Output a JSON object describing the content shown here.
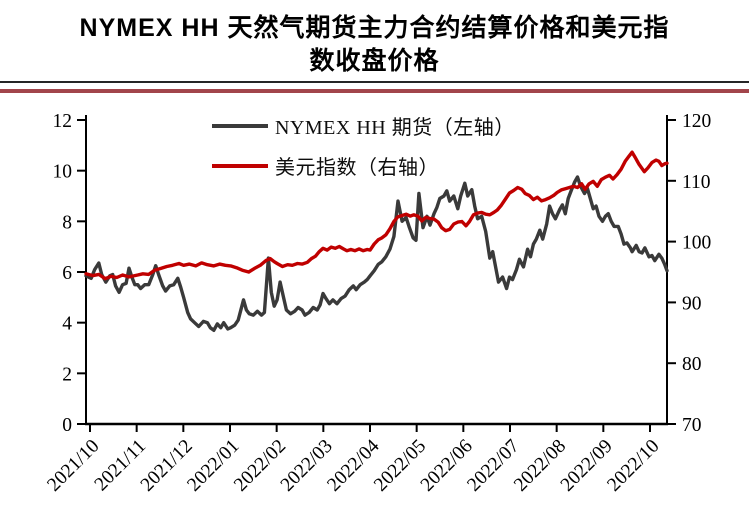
{
  "header": {
    "title": "NYMEX HH 天然气期货主力合约结算价格和美元指数收盘价格",
    "title_lines": [
      "NYMEX HH 天然气期货主力合约结算价格和美元指",
      "数收盘价格"
    ]
  },
  "colors": {
    "nymex_line": "#3a3a3a",
    "dxy_line": "#c00000",
    "title_rule_red": "#a2454b",
    "title_rule_thin": "#262626",
    "axis": "#000000"
  },
  "chart_data": {
    "type": "line",
    "title": "NYMEX HH 天然气期货主力合约结算价格和美元指数收盘价格",
    "grid": false,
    "legend_position": "top-center",
    "x_tick_labels": [
      "2021/10",
      "2021/11",
      "2021/12",
      "2022/01",
      "2022/02",
      "2022/03",
      "2022/04",
      "2022/05",
      "2022/06",
      "2022/07",
      "2022/08",
      "2022/09",
      "2022/10"
    ],
    "left_axis": {
      "min": 0,
      "max": 12,
      "ticks": [
        0,
        2,
        4,
        6,
        8,
        10,
        12
      ]
    },
    "right_axis": {
      "min": 70,
      "max": 120,
      "ticks": [
        70,
        80,
        90,
        100,
        110,
        120
      ]
    },
    "series": [
      {
        "name": "NYMEX HH 期货（左轴）",
        "axis": "left",
        "color": "#3a3a3a",
        "points": [
          [
            0.0,
            5.85
          ],
          [
            0.009,
            5.75
          ],
          [
            0.015,
            6.1
          ],
          [
            0.022,
            6.35
          ],
          [
            0.027,
            5.9
          ],
          [
            0.034,
            5.6
          ],
          [
            0.041,
            5.85
          ],
          [
            0.046,
            5.9
          ],
          [
            0.051,
            5.45
          ],
          [
            0.057,
            5.2
          ],
          [
            0.063,
            5.5
          ],
          [
            0.069,
            5.55
          ],
          [
            0.074,
            6.15
          ],
          [
            0.079,
            5.8
          ],
          [
            0.084,
            5.5
          ],
          [
            0.089,
            5.5
          ],
          [
            0.094,
            5.35
          ],
          [
            0.101,
            5.5
          ],
          [
            0.108,
            5.5
          ],
          [
            0.115,
            5.9
          ],
          [
            0.12,
            6.25
          ],
          [
            0.125,
            5.9
          ],
          [
            0.132,
            5.45
          ],
          [
            0.137,
            5.25
          ],
          [
            0.144,
            5.45
          ],
          [
            0.151,
            5.5
          ],
          [
            0.158,
            5.75
          ],
          [
            0.163,
            5.4
          ],
          [
            0.168,
            5.0
          ],
          [
            0.175,
            4.4
          ],
          [
            0.18,
            4.15
          ],
          [
            0.187,
            4.0
          ],
          [
            0.194,
            3.85
          ],
          [
            0.202,
            4.05
          ],
          [
            0.209,
            4.0
          ],
          [
            0.214,
            3.8
          ],
          [
            0.22,
            3.7
          ],
          [
            0.226,
            3.95
          ],
          [
            0.232,
            3.8
          ],
          [
            0.237,
            4.0
          ],
          [
            0.244,
            3.75
          ],
          [
            0.249,
            3.8
          ],
          [
            0.256,
            3.9
          ],
          [
            0.262,
            4.1
          ],
          [
            0.271,
            4.9
          ],
          [
            0.276,
            4.5
          ],
          [
            0.281,
            4.35
          ],
          [
            0.288,
            4.3
          ],
          [
            0.295,
            4.45
          ],
          [
            0.302,
            4.3
          ],
          [
            0.307,
            4.4
          ],
          [
            0.314,
            6.55
          ],
          [
            0.319,
            5.2
          ],
          [
            0.324,
            4.65
          ],
          [
            0.329,
            4.9
          ],
          [
            0.334,
            5.6
          ],
          [
            0.34,
            5.0
          ],
          [
            0.345,
            4.5
          ],
          [
            0.352,
            4.35
          ],
          [
            0.359,
            4.45
          ],
          [
            0.365,
            4.6
          ],
          [
            0.372,
            4.5
          ],
          [
            0.377,
            4.3
          ],
          [
            0.384,
            4.4
          ],
          [
            0.391,
            4.6
          ],
          [
            0.398,
            4.5
          ],
          [
            0.403,
            4.7
          ],
          [
            0.408,
            5.15
          ],
          [
            0.413,
            4.95
          ],
          [
            0.419,
            4.75
          ],
          [
            0.425,
            4.9
          ],
          [
            0.432,
            4.75
          ],
          [
            0.439,
            4.95
          ],
          [
            0.446,
            5.05
          ],
          [
            0.453,
            5.3
          ],
          [
            0.46,
            5.45
          ],
          [
            0.465,
            5.3
          ],
          [
            0.472,
            5.5
          ],
          [
            0.479,
            5.6
          ],
          [
            0.484,
            5.7
          ],
          [
            0.489,
            5.85
          ],
          [
            0.496,
            6.05
          ],
          [
            0.503,
            6.3
          ],
          [
            0.509,
            6.4
          ],
          [
            0.516,
            6.6
          ],
          [
            0.523,
            6.9
          ],
          [
            0.53,
            7.4
          ],
          [
            0.537,
            8.8
          ],
          [
            0.544,
            8.0
          ],
          [
            0.551,
            8.15
          ],
          [
            0.556,
            7.8
          ],
          [
            0.563,
            7.35
          ],
          [
            0.568,
            7.25
          ],
          [
            0.573,
            9.1
          ],
          [
            0.58,
            7.75
          ],
          [
            0.587,
            8.2
          ],
          [
            0.592,
            7.85
          ],
          [
            0.599,
            8.3
          ],
          [
            0.604,
            8.55
          ],
          [
            0.609,
            8.9
          ],
          [
            0.616,
            9.0
          ],
          [
            0.621,
            9.2
          ],
          [
            0.626,
            8.8
          ],
          [
            0.633,
            9.0
          ],
          [
            0.64,
            8.5
          ],
          [
            0.645,
            9.0
          ],
          [
            0.652,
            9.5
          ],
          [
            0.657,
            9.0
          ],
          [
            0.664,
            9.25
          ],
          [
            0.669,
            8.6
          ],
          [
            0.674,
            8.1
          ],
          [
            0.681,
            8.2
          ],
          [
            0.688,
            7.6
          ],
          [
            0.695,
            6.55
          ],
          [
            0.7,
            6.8
          ],
          [
            0.705,
            6.2
          ],
          [
            0.71,
            5.6
          ],
          [
            0.717,
            5.8
          ],
          [
            0.724,
            5.35
          ],
          [
            0.729,
            5.8
          ],
          [
            0.734,
            5.7
          ],
          [
            0.741,
            6.1
          ],
          [
            0.746,
            6.5
          ],
          [
            0.753,
            6.2
          ],
          [
            0.76,
            6.9
          ],
          [
            0.765,
            6.6
          ],
          [
            0.77,
            7.1
          ],
          [
            0.775,
            7.3
          ],
          [
            0.781,
            7.65
          ],
          [
            0.786,
            7.3
          ],
          [
            0.793,
            7.9
          ],
          [
            0.798,
            8.6
          ],
          [
            0.803,
            8.3
          ],
          [
            0.808,
            8.1
          ],
          [
            0.815,
            8.45
          ],
          [
            0.82,
            8.65
          ],
          [
            0.825,
            8.3
          ],
          [
            0.83,
            8.9
          ],
          [
            0.835,
            9.2
          ],
          [
            0.841,
            9.55
          ],
          [
            0.846,
            9.75
          ],
          [
            0.851,
            9.4
          ],
          [
            0.858,
            9.1
          ],
          [
            0.863,
            9.3
          ],
          [
            0.868,
            8.9
          ],
          [
            0.873,
            8.5
          ],
          [
            0.878,
            8.6
          ],
          [
            0.883,
            8.2
          ],
          [
            0.889,
            8.0
          ],
          [
            0.894,
            8.2
          ],
          [
            0.899,
            8.3
          ],
          [
            0.904,
            8.0
          ],
          [
            0.909,
            7.8
          ],
          [
            0.916,
            7.8
          ],
          [
            0.921,
            7.5
          ],
          [
            0.926,
            7.1
          ],
          [
            0.931,
            7.15
          ],
          [
            0.937,
            6.95
          ],
          [
            0.94,
            6.8
          ],
          [
            0.947,
            7.05
          ],
          [
            0.952,
            6.8
          ],
          [
            0.957,
            6.75
          ],
          [
            0.962,
            6.95
          ],
          [
            0.969,
            6.6
          ],
          [
            0.974,
            6.65
          ],
          [
            0.979,
            6.45
          ],
          [
            0.986,
            6.7
          ],
          [
            0.991,
            6.55
          ],
          [
            0.996,
            6.3
          ],
          [
            1.0,
            6.05
          ]
        ]
      },
      {
        "name": "美元指数（右轴）",
        "axis": "right",
        "color": "#c00000",
        "points": [
          [
            0.0,
            94.7
          ],
          [
            0.012,
            94.4
          ],
          [
            0.022,
            94.6
          ],
          [
            0.033,
            93.9
          ],
          [
            0.043,
            94.3
          ],
          [
            0.053,
            94.1
          ],
          [
            0.063,
            94.5
          ],
          [
            0.074,
            94.2
          ],
          [
            0.084,
            94.4
          ],
          [
            0.089,
            94.5
          ],
          [
            0.098,
            94.7
          ],
          [
            0.108,
            94.6
          ],
          [
            0.118,
            95.3
          ],
          [
            0.129,
            95.6
          ],
          [
            0.139,
            95.9
          ],
          [
            0.149,
            96.1
          ],
          [
            0.16,
            96.4
          ],
          [
            0.168,
            96.1
          ],
          [
            0.178,
            96.3
          ],
          [
            0.189,
            96.0
          ],
          [
            0.199,
            96.5
          ],
          [
            0.209,
            96.2
          ],
          [
            0.22,
            96.0
          ],
          [
            0.23,
            96.3
          ],
          [
            0.24,
            96.1
          ],
          [
            0.249,
            96.0
          ],
          [
            0.259,
            95.7
          ],
          [
            0.269,
            95.3
          ],
          [
            0.28,
            95.0
          ],
          [
            0.29,
            95.6
          ],
          [
            0.3,
            96.1
          ],
          [
            0.31,
            96.9
          ],
          [
            0.317,
            97.2
          ],
          [
            0.324,
            96.7
          ],
          [
            0.329,
            96.4
          ],
          [
            0.338,
            95.9
          ],
          [
            0.347,
            96.2
          ],
          [
            0.355,
            96.1
          ],
          [
            0.364,
            96.4
          ],
          [
            0.372,
            96.3
          ],
          [
            0.381,
            96.6
          ],
          [
            0.388,
            97.2
          ],
          [
            0.395,
            97.6
          ],
          [
            0.401,
            98.3
          ],
          [
            0.408,
            98.9
          ],
          [
            0.415,
            98.6
          ],
          [
            0.422,
            99.1
          ],
          [
            0.429,
            98.9
          ],
          [
            0.436,
            99.2
          ],
          [
            0.443,
            98.8
          ],
          [
            0.449,
            98.5
          ],
          [
            0.456,
            98.7
          ],
          [
            0.463,
            98.5
          ],
          [
            0.47,
            98.8
          ],
          [
            0.477,
            98.5
          ],
          [
            0.484,
            98.7
          ],
          [
            0.489,
            98.6
          ],
          [
            0.496,
            99.6
          ],
          [
            0.503,
            100.3
          ],
          [
            0.509,
            100.6
          ],
          [
            0.516,
            101.1
          ],
          [
            0.523,
            102.1
          ],
          [
            0.53,
            103.3
          ],
          [
            0.537,
            104.1
          ],
          [
            0.544,
            104.3
          ],
          [
            0.551,
            104.5
          ],
          [
            0.558,
            104.2
          ],
          [
            0.564,
            104.4
          ],
          [
            0.571,
            104.2
          ],
          [
            0.578,
            103.4
          ],
          [
            0.585,
            104.0
          ],
          [
            0.592,
            103.8
          ],
          [
            0.599,
            103.7
          ],
          [
            0.606,
            103.2
          ],
          [
            0.612,
            102.3
          ],
          [
            0.619,
            101.8
          ],
          [
            0.626,
            102.0
          ],
          [
            0.633,
            102.9
          ],
          [
            0.64,
            103.2
          ],
          [
            0.647,
            103.3
          ],
          [
            0.654,
            102.6
          ],
          [
            0.66,
            103.3
          ],
          [
            0.667,
            104.4
          ],
          [
            0.674,
            104.7
          ],
          [
            0.681,
            104.8
          ],
          [
            0.688,
            104.5
          ],
          [
            0.695,
            104.4
          ],
          [
            0.702,
            104.8
          ],
          [
            0.708,
            105.2
          ],
          [
            0.715,
            106.0
          ],
          [
            0.722,
            107.0
          ],
          [
            0.729,
            108.0
          ],
          [
            0.736,
            108.4
          ],
          [
            0.743,
            108.9
          ],
          [
            0.75,
            108.6
          ],
          [
            0.756,
            107.9
          ],
          [
            0.763,
            107.6
          ],
          [
            0.77,
            106.9
          ],
          [
            0.777,
            107.3
          ],
          [
            0.784,
            106.7
          ],
          [
            0.791,
            106.9
          ],
          [
            0.798,
            107.2
          ],
          [
            0.805,
            107.6
          ],
          [
            0.811,
            108.1
          ],
          [
            0.818,
            108.5
          ],
          [
            0.825,
            108.7
          ],
          [
            0.832,
            108.9
          ],
          [
            0.839,
            109.1
          ],
          [
            0.846,
            108.9
          ],
          [
            0.853,
            109.5
          ],
          [
            0.859,
            108.6
          ],
          [
            0.866,
            109.5
          ],
          [
            0.873,
            109.9
          ],
          [
            0.88,
            109.1
          ],
          [
            0.887,
            110.2
          ],
          [
            0.894,
            110.6
          ],
          [
            0.901,
            110.9
          ],
          [
            0.907,
            110.3
          ],
          [
            0.914,
            111.0
          ],
          [
            0.921,
            111.9
          ],
          [
            0.928,
            113.2
          ],
          [
            0.935,
            114.1
          ],
          [
            0.94,
            114.7
          ],
          [
            0.945,
            113.9
          ],
          [
            0.952,
            112.7
          ],
          [
            0.961,
            111.5
          ],
          [
            0.967,
            112.1
          ],
          [
            0.974,
            113.0
          ],
          [
            0.981,
            113.4
          ],
          [
            0.986,
            113.2
          ],
          [
            0.991,
            112.5
          ],
          [
            0.996,
            112.8
          ],
          [
            1.0,
            112.9
          ]
        ]
      }
    ]
  }
}
